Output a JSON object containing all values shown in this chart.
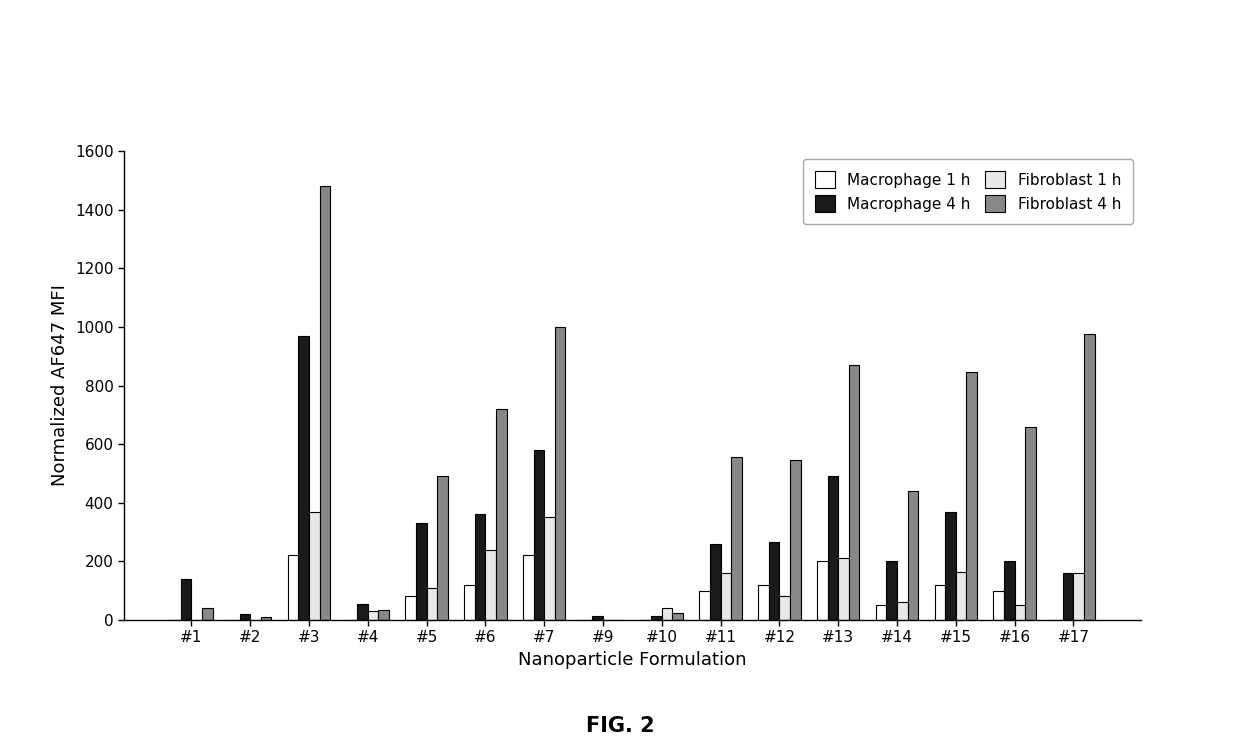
{
  "categories": [
    "#1",
    "#2",
    "#3",
    "#4",
    "#5",
    "#6",
    "#7",
    "#9",
    "#10",
    "#11",
    "#12",
    "#13",
    "#14",
    "#15",
    "#16",
    "#17"
  ],
  "macrophage_1h": [
    0,
    0,
    220,
    0,
    80,
    120,
    220,
    0,
    0,
    100,
    120,
    200,
    50,
    120,
    100,
    0
  ],
  "macrophage_4h": [
    140,
    20,
    970,
    55,
    330,
    360,
    580,
    15,
    15,
    260,
    265,
    490,
    200,
    370,
    200,
    160
  ],
  "fibroblast_1h": [
    0,
    0,
    370,
    30,
    110,
    240,
    350,
    0,
    40,
    160,
    80,
    210,
    60,
    165,
    50,
    160
  ],
  "fibroblast_4h": [
    40,
    10,
    1480,
    35,
    490,
    720,
    1000,
    0,
    25,
    555,
    545,
    870,
    440,
    845,
    660,
    975
  ],
  "ylabel": "Normalized AF647 MFI",
  "xlabel": "Nanoparticle Formulation",
  "ylim": [
    0,
    1600
  ],
  "yticks": [
    0,
    200,
    400,
    600,
    800,
    1000,
    1200,
    1400,
    1600
  ],
  "legend_labels": [
    "Macrophage 1 h",
    "Macrophage 4 h",
    "Fibroblast 1 h",
    "Fibroblast 4 h"
  ],
  "bar_colors": [
    "#ffffff",
    "#1a1a1a",
    "#e8e8e8",
    "#888888"
  ],
  "bar_edgecolors": [
    "#000000",
    "#000000",
    "#000000",
    "#000000"
  ],
  "fig_caption": "FIG. 2",
  "background_color": "#ffffff",
  "bar_width": 0.18,
  "axis_fontsize": 13,
  "tick_fontsize": 11,
  "legend_fontsize": 11,
  "caption_fontsize": 15
}
